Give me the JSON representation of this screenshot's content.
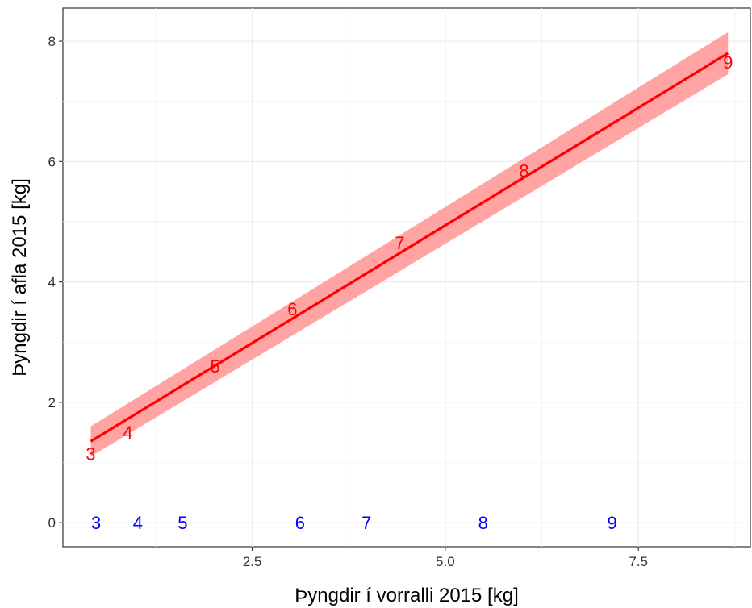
{
  "chart_data": {
    "type": "scatter",
    "title": "",
    "xlabel": "Þyngdir í vorralli 2015 [kg]",
    "ylabel": "Þyngdir í afla 2015 [kg]",
    "xlim": [
      0.05,
      8.95
    ],
    "ylim": [
      -0.4,
      8.55
    ],
    "x_ticks": [
      2.5,
      5.0,
      7.5
    ],
    "x_tick_labels": [
      "2.5",
      "5.0",
      "7.5"
    ],
    "y_ticks": [
      0,
      2,
      4,
      6,
      8
    ],
    "y_tick_labels": [
      "0",
      "2",
      "4",
      "6",
      "8"
    ],
    "grid": true,
    "legend": "none",
    "series": [
      {
        "color": "#ff0000",
        "points": [
          {
            "x": 0.41,
            "y": 1.15,
            "label": "3"
          },
          {
            "x": 0.89,
            "y": 1.5,
            "label": "4"
          },
          {
            "x": 2.02,
            "y": 2.6,
            "label": "5"
          },
          {
            "x": 3.02,
            "y": 3.55,
            "label": "6"
          },
          {
            "x": 4.41,
            "y": 4.65,
            "label": "7"
          },
          {
            "x": 6.02,
            "y": 5.85,
            "label": "8"
          },
          {
            "x": 8.66,
            "y": 7.65,
            "label": "9"
          }
        ]
      },
      {
        "color": "#0000ff",
        "points": [
          {
            "x": 0.48,
            "y": 0,
            "label": "3"
          },
          {
            "x": 1.02,
            "y": 0,
            "label": "4"
          },
          {
            "x": 1.6,
            "y": 0,
            "label": "5"
          },
          {
            "x": 3.12,
            "y": 0,
            "label": "6"
          },
          {
            "x": 3.98,
            "y": 0,
            "label": "7"
          },
          {
            "x": 5.49,
            "y": 0,
            "label": "8"
          },
          {
            "x": 7.16,
            "y": 0,
            "label": "9"
          }
        ]
      }
    ],
    "fit_line": {
      "color": "#ff0000",
      "band_color": "#ff9999",
      "x": [
        0.41,
        8.66
      ],
      "y": [
        1.35,
        7.8
      ],
      "lower": [
        1.1,
        7.45
      ],
      "upper": [
        1.6,
        8.15
      ]
    }
  }
}
